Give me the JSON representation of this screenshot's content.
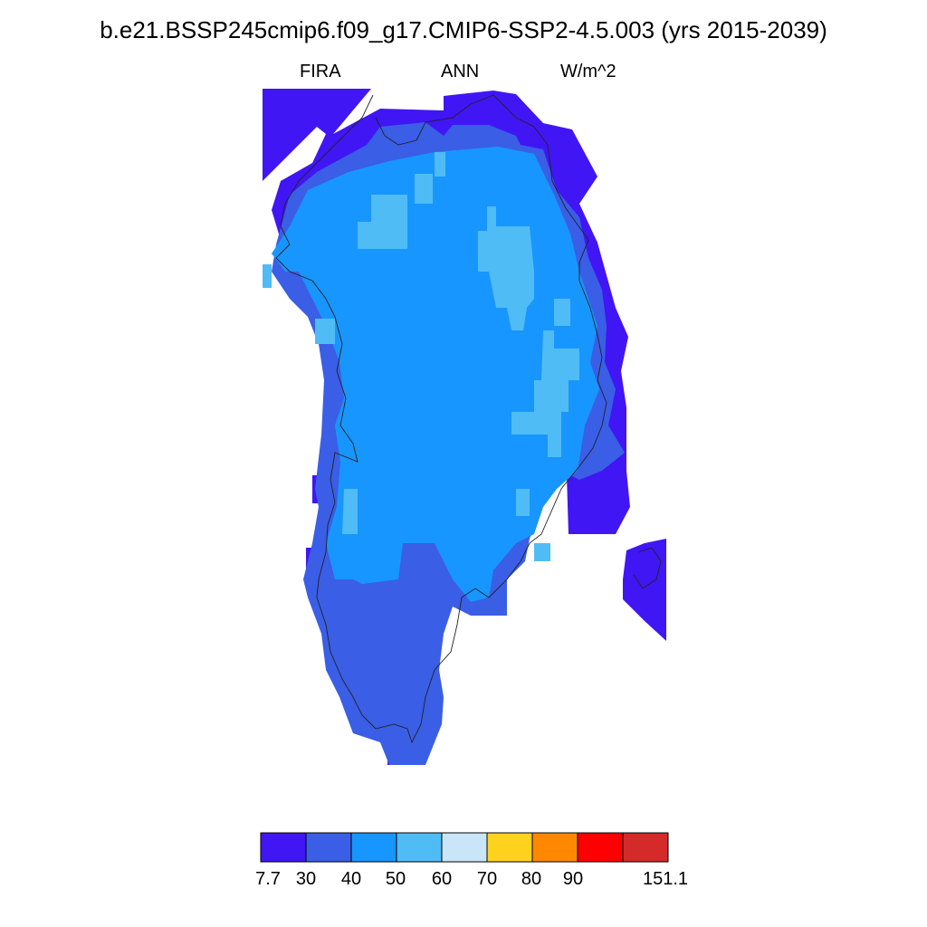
{
  "title": "b.e21.BSSP245cmip6.f09_g17.CMIP6-SSP2-4.5.003 (yrs 2015-2039)",
  "subtitle": {
    "variable": "FIRA",
    "season": "ANN",
    "units": "W/m^2"
  },
  "colorbar": {
    "colors": [
      "#4016f5",
      "#3a5ee6",
      "#1896ff",
      "#50bcf5",
      "#c8e6f8",
      "#ffd21e",
      "#ff8800",
      "#ff0000",
      "#d42a2a"
    ],
    "labels": [
      "7.7",
      "30",
      "40",
      "50",
      "60",
      "70",
      "80",
      "90",
      "151.1"
    ]
  },
  "colors": {
    "coastline": "#222222"
  }
}
